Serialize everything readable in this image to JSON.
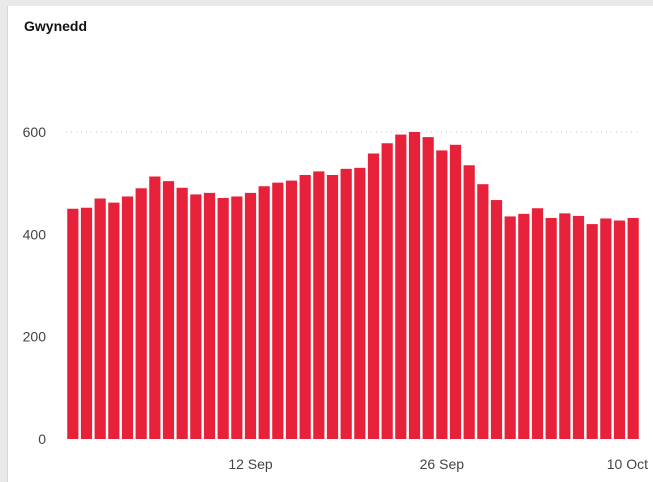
{
  "chart_data": {
    "type": "bar",
    "title": "Gwynedd",
    "xlabel": "",
    "ylabel": "",
    "ylim": [
      0,
      600
    ],
    "yticks": [
      0,
      200,
      400,
      600
    ],
    "grid": "horizontal dotted at 600",
    "color": "#e8213a",
    "x_start": "2020-08-30",
    "xtick_labels": [
      {
        "label": "12 Sep",
        "index": 13
      },
      {
        "label": "26 Sep",
        "index": 27
      },
      {
        "label": "10 Oct",
        "index": 41
      }
    ],
    "values": [
      450,
      452,
      470,
      462,
      474,
      490,
      513,
      504,
      491,
      478,
      481,
      471,
      474,
      481,
      494,
      501,
      505,
      516,
      523,
      516,
      528,
      530,
      558,
      578,
      595,
      600,
      590,
      564,
      575,
      535,
      498,
      467,
      435,
      440,
      451,
      432,
      441,
      436,
      420,
      431,
      427,
      432
    ]
  }
}
